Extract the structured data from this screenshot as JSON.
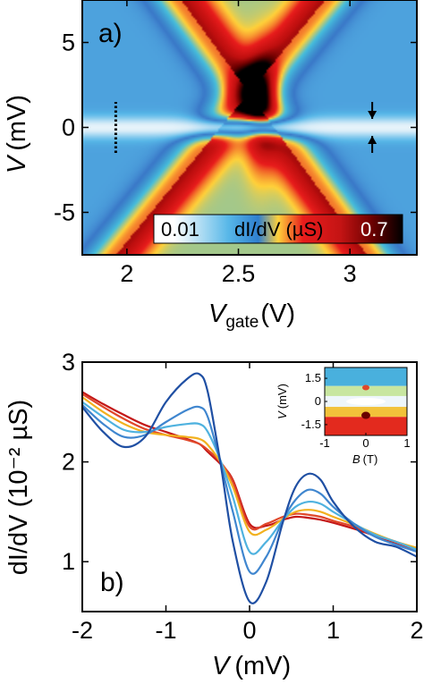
{
  "chart_data": [
    {
      "panel_label": "a)",
      "type": "heatmap",
      "xlabel": "V",
      "xlabel_sub": "gate",
      "xlabel_unit": "(V)",
      "ylabel": "V",
      "ylabel_unit": "(mV)",
      "xlim": [
        1.8,
        3.3
      ],
      "ylim": [
        -7.5,
        7.5
      ],
      "xticks": [
        "2",
        "2.5",
        "3"
      ],
      "xtick_values": [
        2,
        2.5,
        3
      ],
      "yticks": [
        "5",
        "0",
        "-5"
      ],
      "ytick_values": [
        5,
        0,
        -5
      ],
      "colorbar": {
        "min_label": "0.01",
        "label": "dI/dV (µS)",
        "max_label": "0.7",
        "min": 0.01,
        "max": 0.7
      },
      "colormap": [
        "#3a5fc0",
        "#57b7e8",
        "#f1f7fb",
        "#ffd13a",
        "#e81c1c",
        "#7a0000",
        "#000000"
      ],
      "background_level": 0.12,
      "features": [
        {
          "name": "resonance-left",
          "vgate_at_bias_0": 2.42,
          "slope_mV_per_V": 16,
          "width_V": 0.16,
          "level": 0.5
        },
        {
          "name": "resonance-right",
          "vgate_at_bias_0": 2.66,
          "slope_mV_per_V": -18,
          "width_V": 0.16,
          "level": 0.5
        },
        {
          "name": "peak-center",
          "vgate": 2.6,
          "bias_mV": 1.0,
          "level": 0.7
        },
        {
          "name": "zero-bias-dip",
          "bias_mV": 0,
          "level": 0.02
        }
      ],
      "annotations": {
        "dotted_line": {
          "vgate": 1.95,
          "bias_from": -1.5,
          "bias_to": 1.5
        },
        "arrow_down": {
          "vgate": 3.1,
          "bias_from": 1.5,
          "bias_to": 0.5
        },
        "arrow_up": {
          "vgate": 3.1,
          "bias_from": -1.5,
          "bias_to": -0.5
        }
      }
    },
    {
      "panel_label": "b)",
      "type": "line",
      "xlabel": "V",
      "xlabel_unit": "(mV)",
      "ylabel": "dI/dV (10⁻² µS)",
      "xlim": [
        -2,
        2
      ],
      "ylim": [
        0.5,
        3
      ],
      "xticks": [
        "-2",
        "-1",
        "0",
        "1",
        "2"
      ],
      "xtick_values": [
        -2,
        -1,
        0,
        1,
        2
      ],
      "yticks": [
        "3",
        "2",
        "1"
      ],
      "ytick_values": [
        3,
        2,
        1
      ],
      "x": [
        -2,
        -1.75,
        -1.5,
        -1.25,
        -1,
        -0.75,
        -0.6,
        -0.5,
        -0.35,
        -0.2,
        0,
        0.2,
        0.4,
        0.55,
        0.7,
        0.85,
        1,
        1.25,
        1.5,
        1.75,
        2
      ],
      "series": [
        {
          "color": "#1f4fa3",
          "values": [
            2.55,
            2.3,
            2.15,
            2.25,
            2.6,
            2.83,
            2.88,
            2.7,
            2.0,
            1.2,
            0.6,
            0.8,
            1.4,
            1.75,
            1.88,
            1.82,
            1.6,
            1.35,
            1.2,
            1.15,
            1.05
          ]
        },
        {
          "color": "#3f86cf",
          "values": [
            2.57,
            2.38,
            2.25,
            2.27,
            2.4,
            2.52,
            2.55,
            2.45,
            2.0,
            1.5,
            0.9,
            1.05,
            1.42,
            1.62,
            1.72,
            1.68,
            1.55,
            1.38,
            1.25,
            1.17,
            1.1
          ]
        },
        {
          "color": "#4fb2df",
          "values": [
            2.6,
            2.45,
            2.32,
            2.3,
            2.35,
            2.38,
            2.38,
            2.3,
            2.02,
            1.65,
            1.1,
            1.2,
            1.42,
            1.55,
            1.6,
            1.58,
            1.5,
            1.38,
            1.27,
            1.2,
            1.12
          ]
        },
        {
          "color": "#f2b11f",
          "values": [
            2.65,
            2.5,
            2.38,
            2.3,
            2.27,
            2.25,
            2.23,
            2.17,
            2.0,
            1.75,
            1.3,
            1.32,
            1.43,
            1.5,
            1.52,
            1.5,
            1.45,
            1.37,
            1.28,
            1.2,
            1.14
          ]
        },
        {
          "color": "#e0472a",
          "values": [
            2.68,
            2.55,
            2.43,
            2.33,
            2.27,
            2.22,
            2.18,
            2.12,
            2.0,
            1.8,
            1.35,
            1.38,
            1.45,
            1.48,
            1.47,
            1.45,
            1.41,
            1.35,
            1.27,
            1.2,
            1.13
          ]
        },
        {
          "color": "#c41818",
          "values": [
            2.7,
            2.58,
            2.47,
            2.37,
            2.3,
            2.23,
            2.18,
            2.1,
            1.98,
            1.82,
            1.38,
            1.36,
            1.42,
            1.45,
            1.44,
            1.42,
            1.39,
            1.33,
            1.26,
            1.19,
            1.12
          ]
        }
      ],
      "inset": {
        "type": "heatmap",
        "xlabel": "B",
        "xlabel_unit": "(T)",
        "ylabel": "V",
        "ylabel_unit": "(mV)",
        "xlim": [
          -1,
          1
        ],
        "ylim": [
          -2.2,
          2.2
        ],
        "xticks": [
          "-1",
          "0",
          "1"
        ],
        "xtick_values": [
          -1,
          0,
          1
        ],
        "yticks": [
          "1.5",
          "0",
          "-1.5"
        ],
        "ytick_values": [
          1.5,
          0,
          -1.5
        ],
        "bands": [
          {
            "from": 2.2,
            "to": 1.0,
            "color": "#49b0dd"
          },
          {
            "from": 1.0,
            "to": 0.35,
            "color": "#c8e6a0"
          },
          {
            "from": 0.35,
            "to": -0.35,
            "color": "#eef6fb"
          },
          {
            "from": -0.35,
            "to": -1.0,
            "color": "#f2c23a"
          },
          {
            "from": -1.0,
            "to": -2.2,
            "color": "#e32a1e"
          }
        ]
      }
    }
  ]
}
